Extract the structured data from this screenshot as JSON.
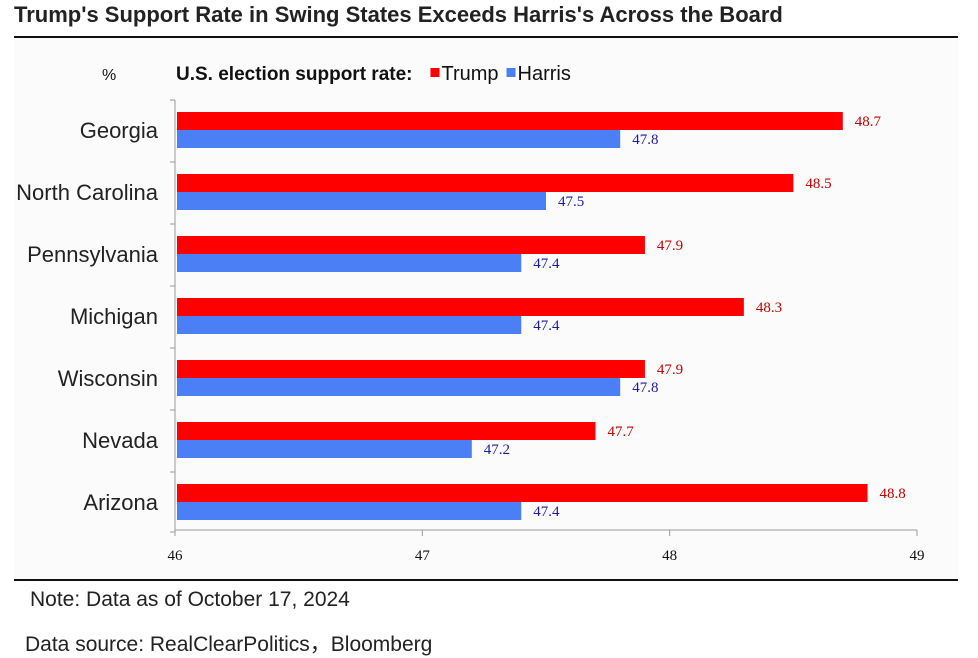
{
  "title": "Trump's Support Rate in Swing States Exceeds Harris's Across the Board",
  "note": "Note: Data as of October 17, 2024",
  "source": "Data source: RealClearPolitics，Bloomberg",
  "chart_data": {
    "type": "bar",
    "orientation": "horizontal",
    "unit_label": "%",
    "legend_title": "U.S. election support rate:",
    "legend_position": "top",
    "categories": [
      "Georgia",
      "North Carolina",
      "Pennsylvania",
      "Michigan",
      "Wisconsin",
      "Nevada",
      "Arizona"
    ],
    "series": [
      {
        "name": "Trump",
        "color": "#ff0000",
        "label_color": "#c00000",
        "values": [
          48.7,
          48.5,
          47.9,
          48.3,
          47.9,
          47.7,
          48.8
        ]
      },
      {
        "name": "Harris",
        "color": "#4a7ff5",
        "label_color": "#1a1aa8",
        "values": [
          47.8,
          47.5,
          47.4,
          47.4,
          47.8,
          47.2,
          47.4
        ]
      }
    ],
    "xlim": [
      46,
      49
    ],
    "xticks": [
      46,
      47,
      48,
      49
    ],
    "grid": false
  }
}
